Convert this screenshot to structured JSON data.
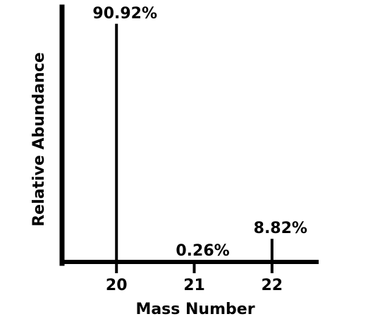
{
  "chart_data": {
    "type": "bar",
    "style": "stick spectrum",
    "title": "",
    "xlabel": "Mass Number",
    "ylabel": "Relative Abundance",
    "categories": [
      "20",
      "21",
      "22"
    ],
    "x": [
      20,
      21,
      22
    ],
    "values": [
      90.92,
      0.26,
      8.82
    ],
    "data_labels": [
      "90.92%",
      "0.26%",
      "8.82%"
    ],
    "xlim": [
      19.3,
      22.6
    ],
    "ylim": [
      0,
      100
    ],
    "grid": false,
    "legend": "none",
    "colors": {
      "lines": "#000000",
      "background": "#ffffff"
    }
  }
}
